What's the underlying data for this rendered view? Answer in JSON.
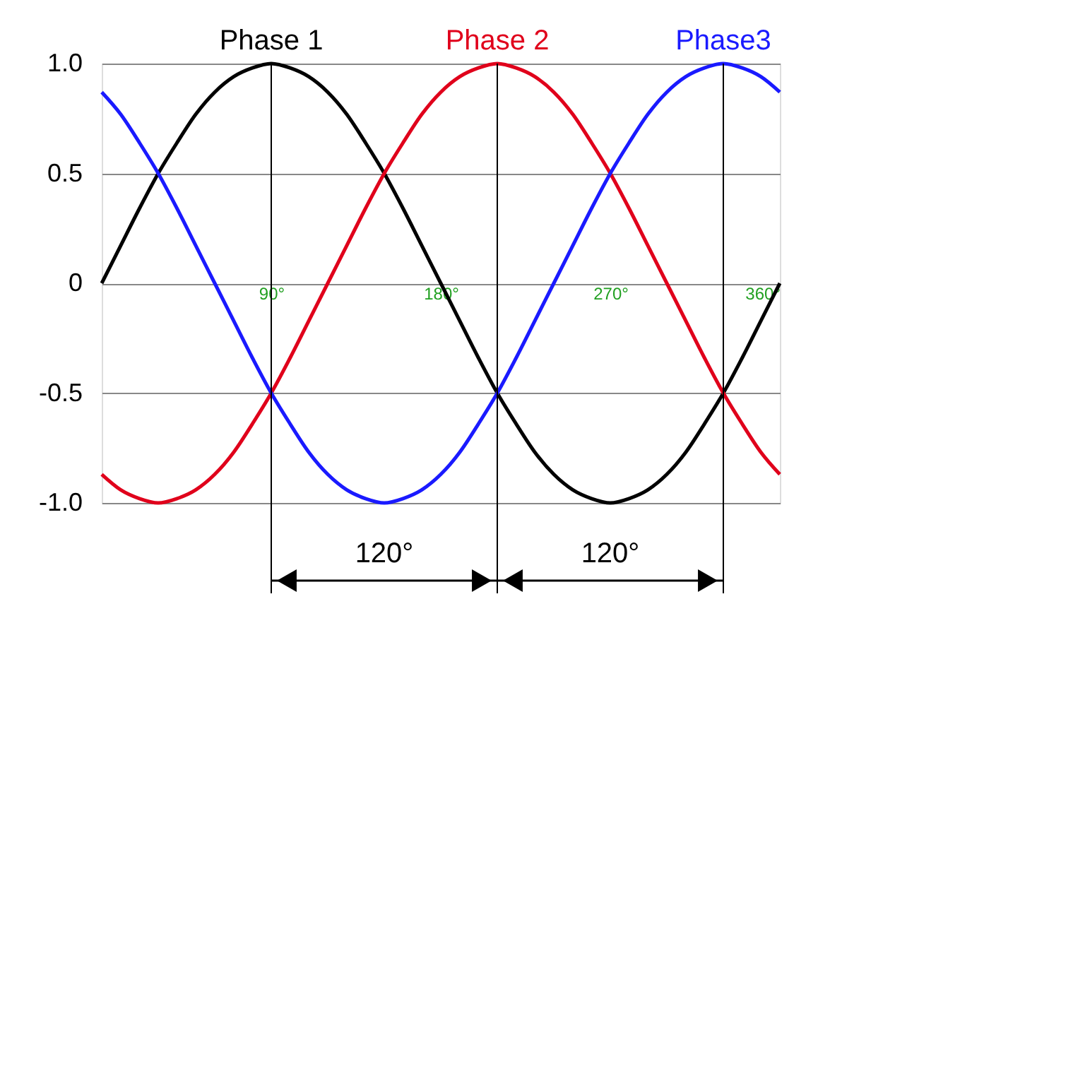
{
  "chart_data": {
    "type": "line",
    "x": [
      0,
      10,
      20,
      30,
      40,
      50,
      60,
      70,
      80,
      90,
      100,
      110,
      120,
      130,
      140,
      150,
      160,
      170,
      180,
      190,
      200,
      210,
      220,
      230,
      240,
      250,
      260,
      270,
      280,
      290,
      300,
      310,
      320,
      330,
      340,
      350,
      360
    ],
    "series": [
      {
        "name": "Phase 1",
        "color": "#000000",
        "values": [
          0,
          0.17,
          0.34,
          0.5,
          0.64,
          0.77,
          0.87,
          0.94,
          0.98,
          1,
          0.98,
          0.94,
          0.87,
          0.77,
          0.64,
          0.5,
          0.34,
          0.17,
          0,
          -0.17,
          -0.34,
          -0.5,
          -0.64,
          -0.77,
          -0.87,
          -0.94,
          -0.98,
          -1,
          -0.98,
          -0.94,
          -0.87,
          -0.77,
          -0.64,
          -0.5,
          -0.34,
          -0.17,
          0
        ]
      },
      {
        "name": "Phase 2",
        "color": "#e0001b",
        "values": [
          -0.87,
          -0.94,
          -0.98,
          -1,
          -0.98,
          -0.94,
          -0.87,
          -0.77,
          -0.64,
          -0.5,
          -0.34,
          -0.17,
          0,
          0.17,
          0.34,
          0.5,
          0.64,
          0.77,
          0.87,
          0.94,
          0.98,
          1,
          0.98,
          0.94,
          0.87,
          0.77,
          0.64,
          0.5,
          0.34,
          0.17,
          0,
          -0.17,
          -0.34,
          -0.5,
          -0.64,
          -0.77,
          -0.87
        ]
      },
      {
        "name": "Phase3",
        "color": "#1a1aff",
        "values": [
          0.87,
          0.77,
          0.64,
          0.5,
          0.34,
          0.17,
          0,
          -0.17,
          -0.34,
          -0.5,
          -0.64,
          -0.77,
          -0.87,
          -0.94,
          -0.98,
          -1,
          -0.98,
          -0.94,
          -0.87,
          -0.77,
          -0.64,
          -0.5,
          -0.34,
          -0.17,
          0,
          0.17,
          0.34,
          0.5,
          0.64,
          0.77,
          0.87,
          0.94,
          0.98,
          1,
          0.98,
          0.94,
          0.87
        ]
      }
    ],
    "xlim": [
      0,
      360
    ],
    "xticks": [
      {
        "value": 90,
        "label": "90°"
      },
      {
        "value": 180,
        "label": "180°"
      },
      {
        "value": 270,
        "label": "270°"
      },
      {
        "value": 360,
        "label": "360°"
      }
    ],
    "ylim": [
      -1,
      1
    ],
    "yticks": [
      {
        "value": 1,
        "label": "1.0"
      },
      0.5,
      0,
      -0.5,
      {
        "value": -1,
        "label": "-1.0"
      }
    ],
    "ref_lines": [
      {
        "axis": "x",
        "value": 90,
        "color": "#000000"
      },
      {
        "axis": "x",
        "value": 210,
        "color": "#000000"
      },
      {
        "axis": "x",
        "value": 330,
        "color": "#000000"
      }
    ],
    "annotations": [
      "120°",
      "120°"
    ],
    "grid": "y",
    "legend": false,
    "marker": "none",
    "line_style": "solid"
  }
}
